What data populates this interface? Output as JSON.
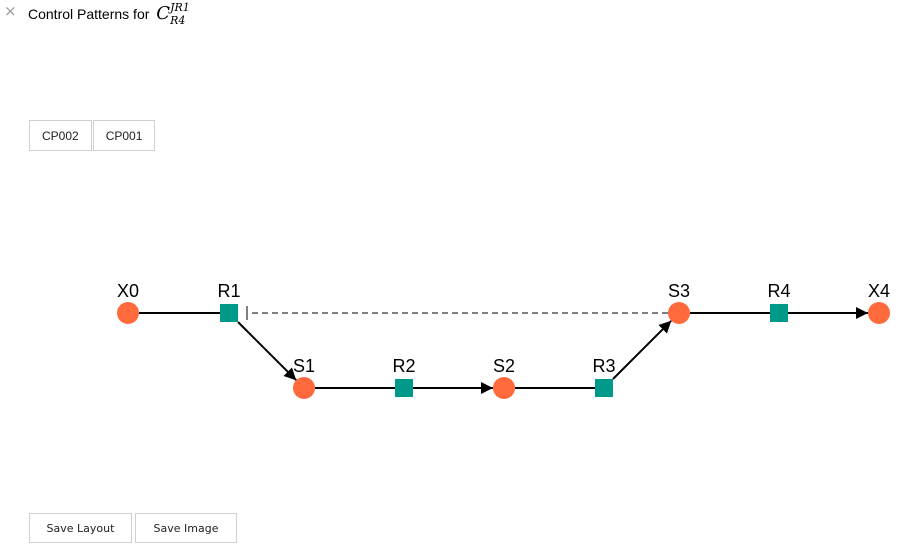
{
  "window": {
    "close_glyph": "×",
    "title_prefix": "Control Patterns for",
    "title_symbol": {
      "base": "C",
      "superscript": "JR1",
      "subscript": "R4"
    }
  },
  "pattern_tabs": [
    {
      "label": "CP002"
    },
    {
      "label": "CP001"
    }
  ],
  "graph": {
    "colors": {
      "species_node": "#ff6a3d",
      "reaction_node": "#00998a",
      "edge": "#000000",
      "control_edge": "#808080"
    },
    "nodes": [
      {
        "id": "X0",
        "label": "X0",
        "kind": "species"
      },
      {
        "id": "R1",
        "label": "R1",
        "kind": "reaction"
      },
      {
        "id": "S1",
        "label": "S1",
        "kind": "species"
      },
      {
        "id": "R2",
        "label": "R2",
        "kind": "reaction"
      },
      {
        "id": "S2",
        "label": "S2",
        "kind": "species"
      },
      {
        "id": "R3",
        "label": "R3",
        "kind": "reaction"
      },
      {
        "id": "S3",
        "label": "S3",
        "kind": "species"
      },
      {
        "id": "R4",
        "label": "R4",
        "kind": "reaction"
      },
      {
        "id": "X4",
        "label": "X4",
        "kind": "species"
      }
    ],
    "edges": [
      {
        "from": "X0",
        "to": "R1",
        "style": "solid",
        "arrow": false
      },
      {
        "from": "R1",
        "to": "S1",
        "style": "solid",
        "arrow": true
      },
      {
        "from": "S1",
        "to": "R2",
        "style": "solid",
        "arrow": false
      },
      {
        "from": "R2",
        "to": "S2",
        "style": "solid",
        "arrow": true
      },
      {
        "from": "S2",
        "to": "R3",
        "style": "solid",
        "arrow": false
      },
      {
        "from": "R3",
        "to": "S3",
        "style": "solid",
        "arrow": true
      },
      {
        "from": "S3",
        "to": "R4",
        "style": "solid",
        "arrow": false
      },
      {
        "from": "R4",
        "to": "X4",
        "style": "solid",
        "arrow": true
      },
      {
        "from": "S3",
        "to": "R1",
        "style": "dashed",
        "arrow": "bar"
      }
    ]
  },
  "footer": {
    "save_layout_label": "Save Layout",
    "save_image_label": "Save Image"
  }
}
